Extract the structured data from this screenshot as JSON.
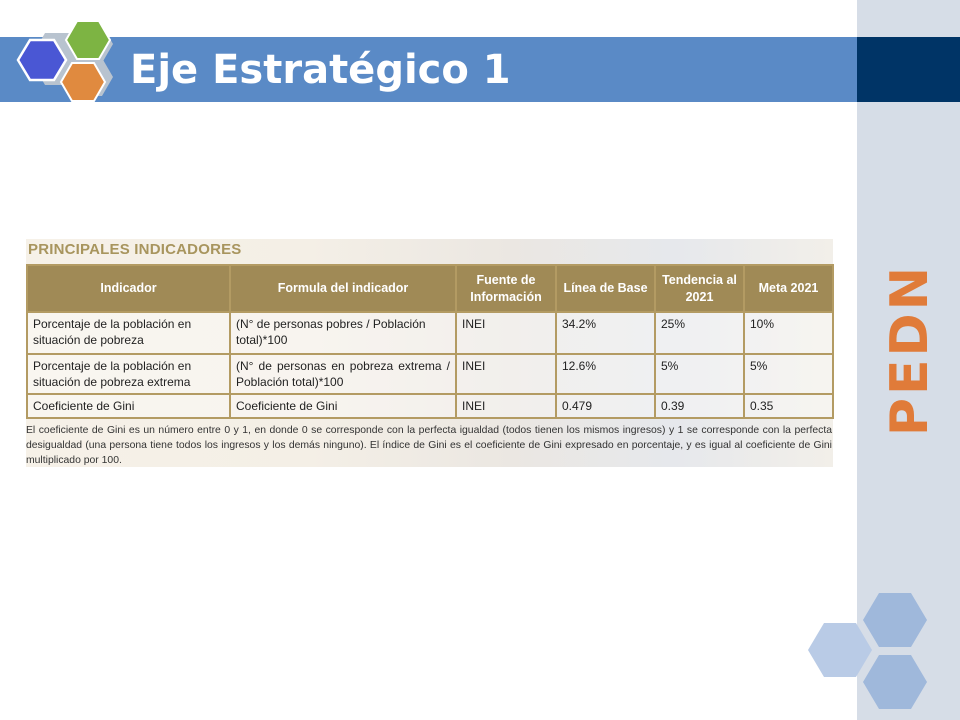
{
  "slide": {
    "title": "Eje Estratégico 1",
    "side_label": "PEDN"
  },
  "panel": {
    "heading": "PRINCIPALES INDICADORES",
    "columns": [
      "Indicador",
      "Formula del indicador",
      "Fuente de Información",
      "Línea de Base",
      "Tendencia al 2021",
      "Meta 2021"
    ],
    "rows": [
      [
        "Porcentaje de la población en situación de pobreza",
        "(N° de personas pobres / Población total)*100",
        "INEI",
        "34.2%",
        "25%",
        "10%"
      ],
      [
        "Porcentaje de la población en situación de pobreza extrema",
        "(N° de personas en pobreza extrema / Población total)*100",
        "INEI",
        "12.6%",
        "5%",
        "5%"
      ],
      [
        "Coeficiente de Gini",
        "Coeficiente de Gini",
        "INEI",
        "0.479",
        "0.39",
        "0.35"
      ]
    ],
    "note": "El coeficiente de Gini es un número entre 0 y 1, en donde 0 se corresponde con la perfecta igualdad (todos tienen los mismos ingresos) y 1 se corresponde con la perfecta desigualdad (una persona tiene todos los ingresos y los demás ninguno). El índice de Gini es el coeficiente de Gini expresado en porcentaje, y es igual al coeficiente de Gini multiplicado por 100."
  },
  "colors": {
    "title_band": "#5a8ac6",
    "dark_band": "#003466",
    "side_bar": "#d6dde7",
    "accent_orange": "#e07b39",
    "table_header": "#a08a56",
    "hex_blue": "#4a57d4",
    "hex_green": "#7db443",
    "hex_orange": "#e08a3f"
  },
  "icons": {
    "logo": "hexagon-cluster-icon",
    "decoration": "hexagon-cluster-decoration"
  }
}
